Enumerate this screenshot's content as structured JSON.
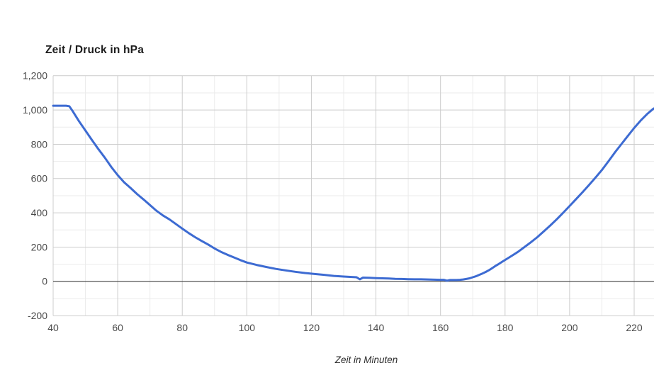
{
  "chart": {
    "title": "Zeit / Druck in hPa",
    "x_axis_title": "Zeit in Minuten"
  },
  "colors": {
    "background": "#ffffff",
    "line": "#3d6bd2",
    "grid_major": "#cccccc",
    "grid_minor": "#ebebeb",
    "zero_line": "#424242",
    "tick_label": "#4a4a4a",
    "title_text": "#1c1c1c",
    "axis_title_text": "#2e2e2e"
  },
  "chart_data": {
    "type": "line",
    "title": "Zeit / Druck in hPa",
    "xlabel": "Zeit in Minuten",
    "ylabel": "",
    "grid": true,
    "legend": false,
    "xlim": [
      40,
      226.5
    ],
    "ylim": [
      -200,
      1200
    ],
    "x_ticks": [
      40,
      60,
      80,
      100,
      120,
      140,
      160,
      180,
      200,
      220
    ],
    "x_tick_labels": [
      "40",
      "60",
      "80",
      "100",
      "120",
      "140",
      "160",
      "180",
      "200",
      "220"
    ],
    "x_minor_ticks": [
      50,
      70,
      90,
      110,
      130,
      150,
      170,
      190,
      210
    ],
    "y_ticks": [
      -200,
      0,
      200,
      400,
      600,
      800,
      1000,
      1200
    ],
    "y_tick_labels": [
      "-200",
      "0",
      "200",
      "400",
      "600",
      "800",
      "1,000",
      "1,200"
    ],
    "y_minor_ticks": [
      -100,
      100,
      300,
      500,
      700,
      900,
      1100
    ],
    "series": [
      {
        "color": "#3d6bd2",
        "points": [
          [
            40,
            1025
          ],
          [
            42,
            1025
          ],
          [
            44,
            1025
          ],
          [
            45,
            1022
          ],
          [
            46,
            995
          ],
          [
            48,
            935
          ],
          [
            50,
            880
          ],
          [
            52,
            825
          ],
          [
            54,
            772
          ],
          [
            56,
            722
          ],
          [
            58,
            668
          ],
          [
            60,
            620
          ],
          [
            62,
            578
          ],
          [
            64,
            545
          ],
          [
            66,
            510
          ],
          [
            68,
            478
          ],
          [
            70,
            445
          ],
          [
            72,
            412
          ],
          [
            74,
            385
          ],
          [
            76,
            362
          ],
          [
            78,
            335
          ],
          [
            80,
            308
          ],
          [
            82,
            282
          ],
          [
            84,
            258
          ],
          [
            86,
            236
          ],
          [
            88,
            215
          ],
          [
            90,
            192
          ],
          [
            92,
            172
          ],
          [
            94,
            155
          ],
          [
            96,
            140
          ],
          [
            98,
            124
          ],
          [
            100,
            110
          ],
          [
            103,
            96
          ],
          [
            106,
            84
          ],
          [
            109,
            73
          ],
          [
            112,
            64
          ],
          [
            115,
            56
          ],
          [
            118,
            49
          ],
          [
            121,
            43
          ],
          [
            124,
            38
          ],
          [
            127,
            32
          ],
          [
            130,
            28
          ],
          [
            133,
            25
          ],
          [
            134,
            24
          ],
          [
            135,
            12
          ],
          [
            136,
            22
          ],
          [
            138,
            21
          ],
          [
            140,
            19
          ],
          [
            142,
            18
          ],
          [
            144,
            17
          ],
          [
            146,
            15
          ],
          [
            148,
            14
          ],
          [
            150,
            13
          ],
          [
            152,
            12
          ],
          [
            154,
            12
          ],
          [
            156,
            11
          ],
          [
            158,
            10
          ],
          [
            160,
            9
          ],
          [
            161,
            9
          ],
          [
            162,
            4
          ],
          [
            163,
            8
          ],
          [
            164,
            8
          ],
          [
            165,
            8
          ],
          [
            166,
            9
          ],
          [
            167,
            11
          ],
          [
            168,
            14
          ],
          [
            169,
            18
          ],
          [
            170,
            24
          ],
          [
            171,
            30
          ],
          [
            172,
            38
          ],
          [
            173,
            46
          ],
          [
            174,
            55
          ],
          [
            175,
            65
          ],
          [
            176,
            77
          ],
          [
            177,
            90
          ],
          [
            178,
            101
          ],
          [
            179,
            113
          ],
          [
            180,
            125
          ],
          [
            182,
            148
          ],
          [
            184,
            172
          ],
          [
            186,
            200
          ],
          [
            188,
            228
          ],
          [
            190,
            258
          ],
          [
            192,
            292
          ],
          [
            194,
            326
          ],
          [
            196,
            362
          ],
          [
            198,
            400
          ],
          [
            200,
            440
          ],
          [
            202,
            480
          ],
          [
            204,
            520
          ],
          [
            206,
            562
          ],
          [
            208,
            605
          ],
          [
            210,
            650
          ],
          [
            212,
            700
          ],
          [
            214,
            752
          ],
          [
            216,
            800
          ],
          [
            218,
            848
          ],
          [
            220,
            895
          ],
          [
            222,
            938
          ],
          [
            224,
            976
          ],
          [
            226,
            1008
          ],
          [
            226.5,
            1012
          ]
        ]
      }
    ]
  }
}
